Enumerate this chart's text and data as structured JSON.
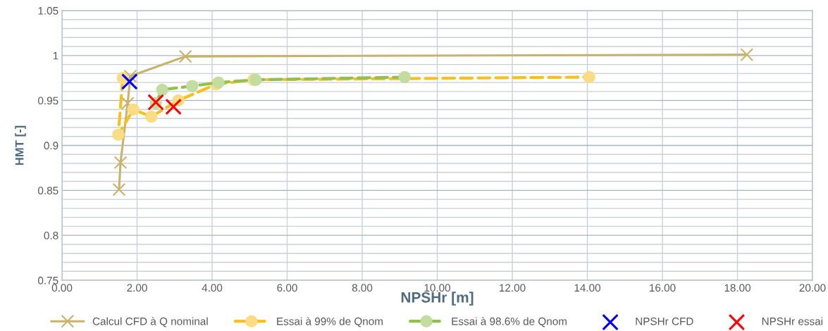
{
  "chart_data": {
    "type": "line",
    "xlabel": "NPSHr [m]",
    "ylabel": "HMT [-]",
    "xlim": [
      0,
      20
    ],
    "xticks": [
      {
        "value": 0,
        "label": "0.00"
      },
      {
        "value": 2,
        "label": "2.00"
      },
      {
        "value": 4,
        "label": "4.00"
      },
      {
        "value": 6,
        "label": "6.00"
      },
      {
        "value": 8,
        "label": "8.00"
      },
      {
        "value": 10,
        "label": "10.00"
      },
      {
        "value": 12,
        "label": "12.00"
      },
      {
        "value": 14,
        "label": "14.00"
      },
      {
        "value": 16,
        "label": "16.00"
      },
      {
        "value": 18,
        "label": "18.00"
      },
      {
        "value": 20,
        "label": "20.00"
      }
    ],
    "ylim": [
      0.75,
      1.05
    ],
    "yticks": [
      0.75,
      {
        "value": 0.76,
        "label": null
      },
      {
        "value": 0.77,
        "label": null
      },
      {
        "value": 0.78,
        "label": null
      },
      {
        "value": 0.79,
        "label": null
      },
      0.8,
      {
        "value": 0.81,
        "label": null
      },
      {
        "value": 0.82,
        "label": null
      },
      {
        "value": 0.83,
        "label": null
      },
      {
        "value": 0.84,
        "label": null
      },
      0.85,
      {
        "value": 0.86,
        "label": null
      },
      {
        "value": 0.87,
        "label": null
      },
      {
        "value": 0.88,
        "label": null
      },
      {
        "value": 0.89,
        "label": null
      },
      0.9,
      {
        "value": 0.91,
        "label": null
      },
      {
        "value": 0.92,
        "label": null
      },
      {
        "value": 0.93,
        "label": null
      },
      {
        "value": 0.94,
        "label": null
      },
      0.95,
      {
        "value": 0.96,
        "label": null
      },
      {
        "value": 0.97,
        "label": null
      },
      {
        "value": 0.98,
        "label": null
      },
      {
        "value": 0.99,
        "label": null
      },
      1,
      {
        "value": 1.01,
        "label": null
      },
      {
        "value": 1.02,
        "label": null
      },
      {
        "value": 1.03,
        "label": null
      },
      {
        "value": 1.04,
        "label": null
      },
      1.05
    ],
    "grid": true,
    "legend": "bottom",
    "series": [
      {
        "name": "Calcul CFD à Q nominal",
        "color": "#c9b26b",
        "marker": "cross",
        "line_style": "solid",
        "x": [
          1.52,
          1.56,
          1.75,
          1.82,
          3.29,
          18.25
        ],
        "values": [
          0.851,
          0.881,
          0.947,
          0.977,
          0.999,
          1.001
        ]
      },
      {
        "name": "Essai à 99% de Qnom",
        "color": "#f5c020",
        "marker": "circle",
        "line_style": "dashed",
        "x": [
          1.62,
          1.5,
          1.9,
          2.38,
          3.1,
          4.11,
          5.1,
          14.05
        ],
        "values": [
          0.975,
          0.912,
          0.94,
          0.932,
          0.95,
          0.968,
          0.973,
          0.976
        ]
      },
      {
        "name": "Essai à 98.6% de Qnom",
        "color": "#92c050",
        "marker": "circle",
        "line_style": "dashed",
        "x": [
          2.5,
          2.67,
          3.47,
          4.17,
          5.16,
          9.13
        ],
        "values": [
          0.947,
          0.962,
          0.966,
          0.97,
          0.973,
          0.976
        ]
      },
      {
        "name": "NPSHr CFD",
        "type": "scatter",
        "color": "#0000ff",
        "marker": "cross",
        "x": [
          1.8
        ],
        "values": [
          0.971
        ]
      },
      {
        "name": "NPSHr essai",
        "type": "scatter",
        "color": "#ff0000",
        "marker": "cross",
        "x": [
          2.5,
          2.97
        ],
        "values": [
          0.948,
          0.943
        ]
      }
    ]
  }
}
